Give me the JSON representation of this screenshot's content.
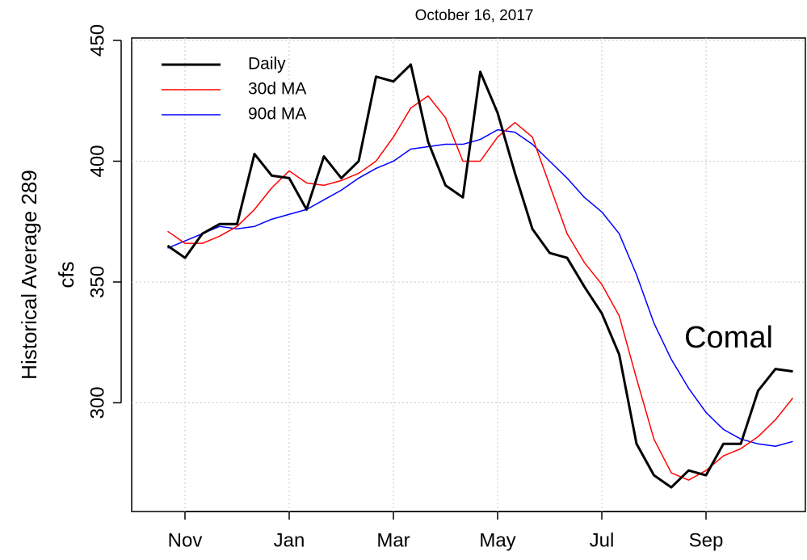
{
  "chart_data": {
    "type": "line",
    "title": "October 16, 2017",
    "ylabel": [
      "Historical Average 289",
      "cfs"
    ],
    "annotation": "Comal",
    "categories": [
      null,
      "Nov",
      null,
      null,
      null,
      null,
      null,
      "Jan",
      null,
      null,
      null,
      null,
      null,
      "Mar",
      null,
      null,
      null,
      null,
      null,
      "May",
      null,
      null,
      null,
      null,
      null,
      "Jul",
      null,
      null,
      null,
      null,
      null,
      "Sep",
      null,
      null,
      null,
      null,
      null
    ],
    "series": [
      {
        "name": "Daily",
        "color": "#000000",
        "width": 3,
        "values": [
          365,
          360,
          370,
          374,
          374,
          403,
          394,
          393,
          380,
          402,
          393,
          400,
          435,
          433,
          440,
          408,
          390,
          385,
          437,
          420,
          395,
          372,
          362,
          360,
          348,
          337,
          320,
          283,
          270,
          265,
          272,
          270,
          283,
          283,
          305,
          314,
          313
        ]
      },
      {
        "name": "30d MA",
        "color": "#ff0000",
        "width": 1.5,
        "values": [
          371,
          366,
          366,
          369,
          373,
          380,
          389,
          396,
          391,
          390,
          392,
          395,
          400,
          410,
          422,
          427,
          418,
          400,
          400,
          410,
          416,
          410,
          390,
          370,
          358,
          349,
          336,
          310,
          285,
          271,
          268,
          272,
          278,
          281,
          286,
          293,
          302
        ]
      },
      {
        "name": "90d MA",
        "color": "#0000ff",
        "width": 1.5,
        "values": [
          364,
          367,
          370,
          373,
          372,
          373,
          376,
          378,
          380,
          384,
          388,
          393,
          397,
          400,
          405,
          406,
          407,
          407,
          409,
          413,
          412,
          407,
          400,
          393,
          385,
          379,
          370,
          353,
          333,
          318,
          306,
          296,
          289,
          285,
          283,
          282,
          284
        ]
      }
    ],
    "ylim": [
      255,
      451
    ],
    "yticks": [
      300,
      350,
      400,
      450
    ],
    "grid": true,
    "legend": "top-left"
  }
}
